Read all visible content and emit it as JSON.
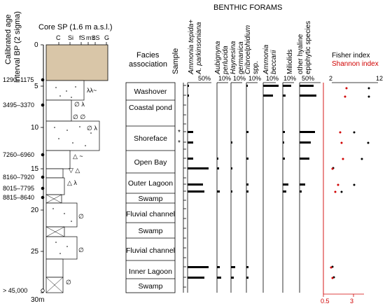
{
  "title": "BENTHIC FORAMS",
  "age_axis_label": [
    "Calibrated age",
    "interval BP (2 sigma)"
  ],
  "core_title": "Core SP (1.6 m a.s.l.)",
  "grain_labels": [
    "C",
    "Si",
    "fS",
    "mS",
    "cS",
    "G"
  ],
  "facies_header": [
    "Facies",
    "association"
  ],
  "sample_header": "Sample",
  "taxa": [
    {
      "id": "ammonia-tepida",
      "lines": [
        "Ammonia tepida+",
        "A. parkinsoniana"
      ],
      "scale": "50%"
    },
    {
      "id": "aubignyna",
      "lines": [
        "Aubignyna",
        "perlucida"
      ],
      "scale": "10%"
    },
    {
      "id": "haynesina",
      "lines": [
        "Haynesina",
        "germanica"
      ],
      "scale": "10%"
    },
    {
      "id": "cribroelphidium",
      "lines": [
        "Cribroelphidium",
        "spp."
      ],
      "scale": "10%"
    },
    {
      "id": "ammonia-beccarii",
      "lines": [
        "Ammonia",
        "beccarii"
      ],
      "scale": "10%"
    },
    {
      "id": "miliolids",
      "lines": [
        "Miliolids"
      ],
      "scale": "10%"
    },
    {
      "id": "other-hyaline",
      "lines": [
        "other hyaline",
        "epiphytic species"
      ],
      "scale": "50%"
    }
  ],
  "index_header": {
    "fisher": "Fisher index",
    "shannon": "Shannon index",
    "top_min": "2",
    "top_max": "12",
    "bottom_min": "0.5",
    "bottom_max": "3"
  },
  "depth_ticks": [
    "0",
    "5",
    "10",
    "15",
    "20",
    "25",
    "30m"
  ],
  "age_labels": [
    "1290–1175",
    "3495–3370",
    "7260–6960",
    "8160–7920",
    "8015–7795",
    "8815–8640",
    "> 45,000"
  ],
  "facies": [
    "Washover",
    "Coastal pond",
    "Shoreface",
    "Open Bay",
    "Outer Lagoon",
    "Swamp",
    "Fluvial channel",
    "Swamp",
    "Fluvial channel",
    "Inner Lagoon",
    "Swamp"
  ],
  "sample_marks": [
    "*",
    "*"
  ],
  "colors": {
    "sand_box": "#d9c6a8",
    "shannon": "#d00000",
    "bars": "#000000"
  }
}
